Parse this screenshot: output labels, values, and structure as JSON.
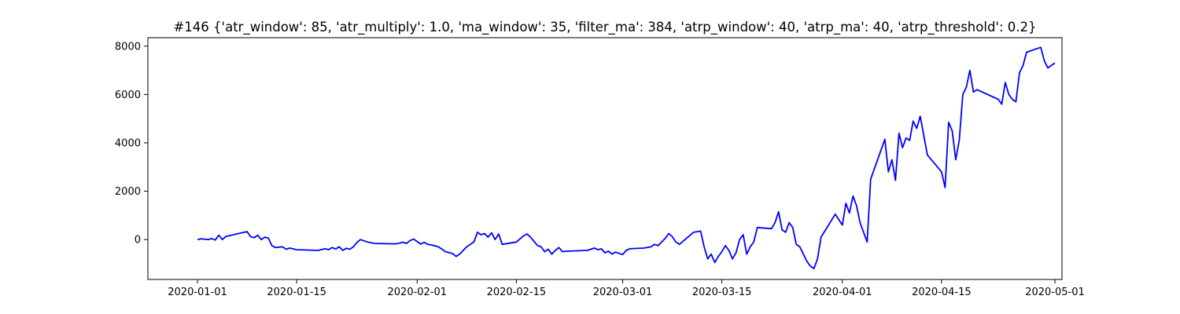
{
  "chart_data": {
    "type": "line",
    "title": "#146 {'atr_window': 85, 'atr_multiply': 1.0, 'ma_window': 35, 'filter_ma': 384, 'atrp_window': 40, 'atrp_ma': 40, 'atrp_threshold': 0.2}",
    "xlabel": "",
    "ylabel": "",
    "x_ticks": [
      "2020-01-01",
      "2020-01-15",
      "2020-02-01",
      "2020-02-15",
      "2020-03-01",
      "2020-03-15",
      "2020-04-01",
      "2020-04-15",
      "2020-05-01"
    ],
    "y_ticks": [
      0,
      2000,
      4000,
      6000,
      8000
    ],
    "xlim": [
      "2019-12-25",
      "2020-05-02"
    ],
    "ylim": [
      -1650,
      8350
    ],
    "grid": false,
    "line_color": "#0000ff",
    "series": [
      {
        "points": [
          [
            "2020-01-01",
            0
          ],
          [
            "2020-01-01T12:00",
            30
          ],
          [
            "2020-01-02",
            20
          ],
          [
            "2020-01-02T12:00",
            0
          ],
          [
            "2020-01-03",
            40
          ],
          [
            "2020-01-03T12:00",
            -20
          ],
          [
            "2020-01-04",
            180
          ],
          [
            "2020-01-04T12:00",
            0
          ],
          [
            "2020-01-05",
            130
          ],
          [
            "2020-01-08",
            330
          ],
          [
            "2020-01-08T12:00",
            120
          ],
          [
            "2020-01-09",
            80
          ],
          [
            "2020-01-09T12:00",
            180
          ],
          [
            "2020-01-10",
            0
          ],
          [
            "2020-01-10T12:00",
            100
          ],
          [
            "2020-01-11",
            60
          ],
          [
            "2020-01-11T12:00",
            -250
          ],
          [
            "2020-01-12",
            -330
          ],
          [
            "2020-01-13",
            -300
          ],
          [
            "2020-01-13T12:00",
            -400
          ],
          [
            "2020-01-14",
            -350
          ],
          [
            "2020-01-15",
            -420
          ],
          [
            "2020-01-16",
            -430
          ],
          [
            "2020-01-18",
            -450
          ],
          [
            "2020-01-19",
            -380
          ],
          [
            "2020-01-19T12:00",
            -420
          ],
          [
            "2020-01-20",
            -330
          ],
          [
            "2020-01-20T12:00",
            -390
          ],
          [
            "2020-01-21",
            -300
          ],
          [
            "2020-01-21T12:00",
            -450
          ],
          [
            "2020-01-22",
            -360
          ],
          [
            "2020-01-22T12:00",
            -400
          ],
          [
            "2020-01-23",
            -300
          ],
          [
            "2020-01-23T12:00",
            -120
          ],
          [
            "2020-01-24",
            0
          ],
          [
            "2020-01-25",
            -100
          ],
          [
            "2020-01-26",
            -160
          ],
          [
            "2020-01-29",
            -180
          ],
          [
            "2020-01-30",
            -110
          ],
          [
            "2020-01-30T12:00",
            -160
          ],
          [
            "2020-01-31",
            -40
          ],
          [
            "2020-01-31T12:00",
            20
          ],
          [
            "2020-02-01",
            -80
          ],
          [
            "2020-02-01T12:00",
            -190
          ],
          [
            "2020-02-02",
            -110
          ],
          [
            "2020-02-02T12:00",
            -200
          ],
          [
            "2020-02-03",
            -220
          ],
          [
            "2020-02-04",
            -300
          ],
          [
            "2020-02-05",
            -500
          ],
          [
            "2020-02-06",
            -580
          ],
          [
            "2020-02-06T12:00",
            -700
          ],
          [
            "2020-02-07",
            -600
          ],
          [
            "2020-02-08",
            -300
          ],
          [
            "2020-02-09",
            -100
          ],
          [
            "2020-02-09T12:00",
            300
          ],
          [
            "2020-02-10",
            200
          ],
          [
            "2020-02-10T12:00",
            250
          ],
          [
            "2020-02-11",
            100
          ],
          [
            "2020-02-11T12:00",
            280
          ],
          [
            "2020-02-12",
            0
          ],
          [
            "2020-02-12T12:00",
            230
          ],
          [
            "2020-02-13",
            -200
          ],
          [
            "2020-02-15",
            -100
          ],
          [
            "2020-02-16",
            150
          ],
          [
            "2020-02-16T12:00",
            230
          ],
          [
            "2020-02-17",
            100
          ],
          [
            "2020-02-17T12:00",
            -80
          ],
          [
            "2020-02-18",
            -250
          ],
          [
            "2020-02-18T12:00",
            -300
          ],
          [
            "2020-02-19",
            -500
          ],
          [
            "2020-02-19T12:00",
            -400
          ],
          [
            "2020-02-20",
            -600
          ],
          [
            "2020-02-20T12:00",
            -450
          ],
          [
            "2020-02-21",
            -330
          ],
          [
            "2020-02-21T12:00",
            -500
          ],
          [
            "2020-02-22",
            -480
          ],
          [
            "2020-02-25",
            -450
          ],
          [
            "2020-02-26",
            -350
          ],
          [
            "2020-02-26T12:00",
            -420
          ],
          [
            "2020-02-27",
            -380
          ],
          [
            "2020-02-27T12:00",
            -550
          ],
          [
            "2020-02-28",
            -480
          ],
          [
            "2020-02-28T12:00",
            -600
          ],
          [
            "2020-02-29",
            -520
          ],
          [
            "2020-03-01",
            -620
          ],
          [
            "2020-03-01T12:00",
            -450
          ],
          [
            "2020-03-02",
            -380
          ],
          [
            "2020-03-04",
            -350
          ],
          [
            "2020-03-05",
            -300
          ],
          [
            "2020-03-05T12:00",
            -200
          ],
          [
            "2020-03-06",
            -250
          ],
          [
            "2020-03-06T12:00",
            -100
          ],
          [
            "2020-03-07",
            50
          ],
          [
            "2020-03-07T12:00",
            250
          ],
          [
            "2020-03-08",
            120
          ],
          [
            "2020-03-08T12:00",
            -100
          ],
          [
            "2020-03-09",
            -200
          ],
          [
            "2020-03-11",
            300
          ],
          [
            "2020-03-12",
            350
          ],
          [
            "2020-03-12T12:00",
            -300
          ],
          [
            "2020-03-13",
            -800
          ],
          [
            "2020-03-13T12:00",
            -600
          ],
          [
            "2020-03-14",
            -950
          ],
          [
            "2020-03-14T12:00",
            -700
          ],
          [
            "2020-03-15",
            -500
          ],
          [
            "2020-03-15T12:00",
            -250
          ],
          [
            "2020-03-16",
            -450
          ],
          [
            "2020-03-16T12:00",
            -800
          ],
          [
            "2020-03-17",
            -550
          ],
          [
            "2020-03-17T12:00",
            0
          ],
          [
            "2020-03-18",
            200
          ],
          [
            "2020-03-18T12:00",
            -600
          ],
          [
            "2020-03-19",
            -300
          ],
          [
            "2020-03-19T12:00",
            -100
          ],
          [
            "2020-03-20",
            500
          ],
          [
            "2020-03-22",
            450
          ],
          [
            "2020-03-22T12:00",
            700
          ],
          [
            "2020-03-23",
            1150
          ],
          [
            "2020-03-23T12:00",
            400
          ],
          [
            "2020-03-24",
            300
          ],
          [
            "2020-03-24T12:00",
            700
          ],
          [
            "2020-03-25",
            500
          ],
          [
            "2020-03-25T12:00",
            -200
          ],
          [
            "2020-03-26",
            -300
          ],
          [
            "2020-03-26T12:00",
            -600
          ],
          [
            "2020-03-27",
            -900
          ],
          [
            "2020-03-27T12:00",
            -1100
          ],
          [
            "2020-03-28",
            -1200
          ],
          [
            "2020-03-28T12:00",
            -800
          ],
          [
            "2020-03-29",
            100
          ],
          [
            "2020-03-31",
            1050
          ],
          [
            "2020-04-01",
            600
          ],
          [
            "2020-04-01T12:00",
            1500
          ],
          [
            "2020-04-02",
            1100
          ],
          [
            "2020-04-02T12:00",
            1800
          ],
          [
            "2020-04-03",
            1400
          ],
          [
            "2020-04-03T12:00",
            700
          ],
          [
            "2020-04-04",
            300
          ],
          [
            "2020-04-04T12:00",
            -100
          ],
          [
            "2020-04-05",
            2500
          ],
          [
            "2020-04-07",
            4150
          ],
          [
            "2020-04-07T12:00",
            2800
          ],
          [
            "2020-04-08",
            3300
          ],
          [
            "2020-04-08T12:00",
            2450
          ],
          [
            "2020-04-09",
            4400
          ],
          [
            "2020-04-09T12:00",
            3800
          ],
          [
            "2020-04-10",
            4200
          ],
          [
            "2020-04-10T12:00",
            4100
          ],
          [
            "2020-04-11",
            4900
          ],
          [
            "2020-04-11T12:00",
            4600
          ],
          [
            "2020-04-12",
            5100
          ],
          [
            "2020-04-12T12:00",
            4300
          ],
          [
            "2020-04-13",
            3500
          ],
          [
            "2020-04-15",
            2800
          ],
          [
            "2020-04-15T12:00",
            2150
          ],
          [
            "2020-04-16",
            4850
          ],
          [
            "2020-04-16T12:00",
            4500
          ],
          [
            "2020-04-17",
            3300
          ],
          [
            "2020-04-17T12:00",
            4100
          ],
          [
            "2020-04-18",
            6000
          ],
          [
            "2020-04-18T12:00",
            6300
          ],
          [
            "2020-04-19",
            7000
          ],
          [
            "2020-04-19T12:00",
            6100
          ],
          [
            "2020-04-20",
            6200
          ],
          [
            "2020-04-23",
            5800
          ],
          [
            "2020-04-23T12:00",
            5600
          ],
          [
            "2020-04-24",
            6500
          ],
          [
            "2020-04-24T12:00",
            6000
          ],
          [
            "2020-04-25",
            5800
          ],
          [
            "2020-04-25T12:00",
            5700
          ],
          [
            "2020-04-26",
            6900
          ],
          [
            "2020-04-26T12:00",
            7200
          ],
          [
            "2020-04-27",
            7750
          ],
          [
            "2020-04-29",
            7950
          ],
          [
            "2020-04-29T12:00",
            7400
          ],
          [
            "2020-04-30",
            7100
          ],
          [
            "2020-05-01",
            7300
          ]
        ]
      }
    ]
  }
}
